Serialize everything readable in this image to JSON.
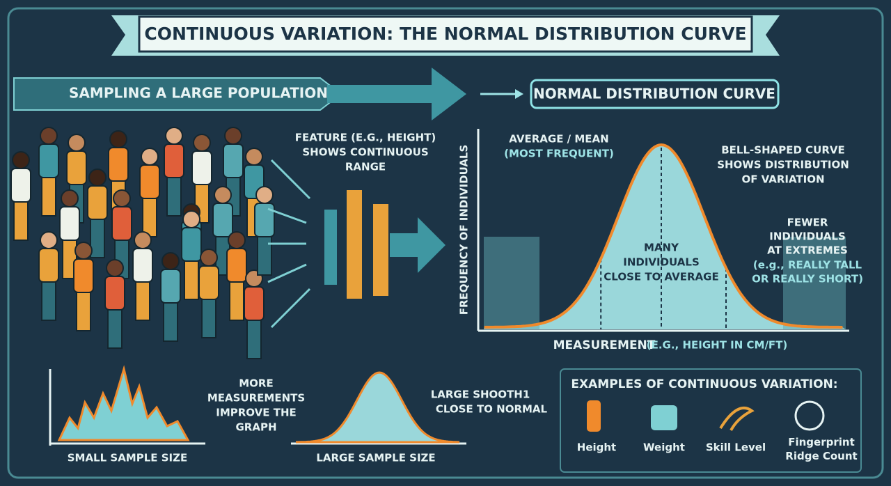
{
  "title": "CONTINUOUS VARIATION: THE NORMAL DISTRIBUTION CURVE",
  "sampling": "SAMPLING A LARGE POPULATION",
  "curve_heading": "NORMAL DISTRIBUTION CURVE",
  "feature": {
    "lines": [
      "FEATURE (E.G., HEIGHT)",
      "SHOWS CONTINUOUS",
      "RANGE"
    ]
  },
  "graph": {
    "y_label": "FREQUENCY OF INDIVIDUALS",
    "x_label": "MEASUREMENT",
    "x_label_note": "(E.G., HEIGHT IN CM/FT)",
    "mean": [
      "AVERAGE / MEAN",
      "(MOST FREQUENT)"
    ],
    "bell": [
      "BELL-SHAPED CURVE",
      "SHOWS DISTRIBUTION",
      "OF VARIATION"
    ],
    "middle": [
      "MANY",
      "INDIVIDUALS",
      "CLOSE TO AVERAGE"
    ],
    "extremes": [
      "FEWER",
      "INDIVIDUALS",
      "AT EXTREMES",
      "(e.g., REALLY TALL",
      "OR REALLY SHORT)"
    ]
  },
  "small_sample": "SMALL SAMPLE SIZE",
  "improve": [
    "MORE",
    "MEASUREMENTS",
    "IMPROVE THE",
    "GRAPH"
  ],
  "large_sample": "LARGE SAMPLE SIZE",
  "large_note": [
    "LARGE SHOOTH1",
    "CLOSE TO NORMAL"
  ],
  "examples": {
    "title": "EXAMPLES OF CONTINUOUS VARIATION:",
    "items": [
      "Height",
      "Weight",
      "Skill Level",
      "Fingerprint Ridge Count"
    ]
  }
}
